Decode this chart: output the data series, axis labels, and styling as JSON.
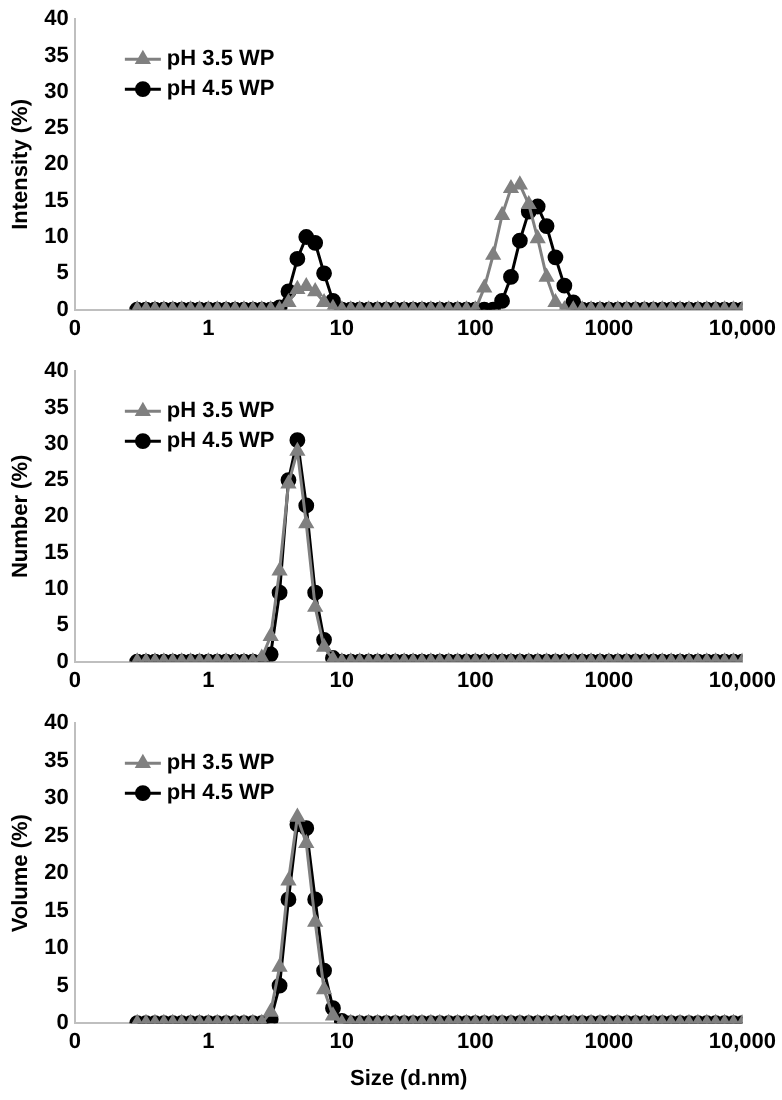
{
  "chart_data": [
    {
      "type": "line",
      "ylabel": "Intensity (%)",
      "legend": "top left",
      "grid": false,
      "x": [
        0.293,
        0.341,
        0.398,
        0.464,
        0.541,
        0.631,
        0.736,
        0.858,
        1,
        1.166,
        1.359,
        1.585,
        1.848,
        2.154,
        2.512,
        2.929,
        3.415,
        3.981,
        4.642,
        5.412,
        6.31,
        7.356,
        8.577,
        10,
        11.66,
        13.59,
        15.85,
        18.48,
        21.54,
        25.12,
        29.29,
        34.15,
        39.81,
        46.42,
        54.12,
        63.1,
        73.56,
        85.77,
        100,
        116.6,
        135.9,
        158.5,
        184.8,
        215.4,
        251.2,
        292.9,
        341.5,
        398.1,
        464.2,
        541.2,
        631,
        735.6,
        857.7,
        1000,
        1166,
        1359,
        1585,
        1848,
        2154,
        2512,
        2929,
        3415,
        3981,
        4642,
        5412,
        6310,
        7356,
        8577,
        10000
      ],
      "log": "x",
      "xlim": [
        0.1,
        10000
      ],
      "xticks": [
        {
          "value": 0.1,
          "label": "0"
        },
        1,
        10,
        100,
        {
          "value": 1000,
          "label": "1000"
        },
        {
          "value": 10000,
          "label": "10,000"
        }
      ],
      "ylim": [
        0,
        40
      ],
      "yticks": [
        0,
        5,
        10,
        15,
        20,
        25,
        30,
        35,
        40
      ],
      "series": [
        {
          "name": "pH 3.5 WP",
          "color": "#808080",
          "marker": "triangle",
          "values": [
            0,
            0,
            0,
            0,
            0,
            0,
            0,
            0,
            0,
            0,
            0,
            0,
            0,
            0,
            0,
            0,
            0,
            1,
            2.8,
            3.2,
            2.5,
            1,
            0.2,
            0,
            0,
            0,
            0,
            0,
            0,
            0,
            0,
            0,
            0,
            0,
            0,
            0,
            0,
            0,
            0,
            3,
            7.5,
            13,
            16.7,
            17.2,
            14.5,
            9.8,
            4.5,
            1,
            0,
            0,
            0,
            0,
            0,
            0,
            0,
            0,
            0,
            0,
            0,
            0,
            0,
            0,
            0,
            0,
            0,
            0,
            0,
            0,
            0
          ]
        },
        {
          "name": "pH 4.5 WP",
          "color": "#000000",
          "marker": "circle",
          "values": [
            0,
            0,
            0,
            0,
            0,
            0,
            0,
            0,
            0,
            0,
            0,
            0,
            0,
            0,
            0,
            0,
            0.3,
            2.5,
            7,
            10,
            9.2,
            5,
            1.2,
            0,
            0,
            0,
            0,
            0,
            0,
            0,
            0,
            0,
            0,
            0,
            0,
            0,
            0,
            0,
            0,
            0,
            0,
            1.2,
            4.5,
            9.5,
            13.5,
            14.2,
            11.5,
            7.2,
            3.3,
            1,
            0,
            0,
            0,
            0,
            0,
            0,
            0,
            0,
            0,
            0,
            0,
            0,
            0,
            0,
            0,
            0,
            0,
            0,
            0
          ]
        }
      ]
    },
    {
      "type": "line",
      "ylabel": "Number (%)",
      "legend": "top left",
      "grid": false,
      "x": [
        0.293,
        0.341,
        0.398,
        0.464,
        0.541,
        0.631,
        0.736,
        0.858,
        1,
        1.166,
        1.359,
        1.585,
        1.848,
        2.154,
        2.512,
        2.929,
        3.415,
        3.981,
        4.642,
        5.412,
        6.31,
        7.356,
        8.577,
        10,
        11.66,
        13.59,
        15.85,
        18.48,
        21.54,
        25.12,
        29.29,
        34.15,
        39.81,
        46.42,
        54.12,
        63.1,
        73.56,
        85.77,
        100,
        116.6,
        135.9,
        158.5,
        184.8,
        215.4,
        251.2,
        292.9,
        341.5,
        398.1,
        464.2,
        541.2,
        631,
        735.6,
        857.7,
        1000,
        1166,
        1359,
        1585,
        1848,
        2154,
        2512,
        2929,
        3415,
        3981,
        4642,
        5412,
        6310,
        7356,
        8577,
        10000
      ],
      "log": "x",
      "xlim": [
        0.1,
        10000
      ],
      "xticks": [
        {
          "value": 0.1,
          "label": "0"
        },
        1,
        10,
        100,
        {
          "value": 1000,
          "label": "1000"
        },
        {
          "value": 10000,
          "label": "10,000"
        }
      ],
      "ylim": [
        0,
        40
      ],
      "yticks": [
        0,
        5,
        10,
        15,
        20,
        25,
        30,
        35,
        40
      ],
      "series": [
        {
          "name": "pH 3.5 WP",
          "color": "#808080",
          "marker": "triangle",
          "values": [
            0,
            0,
            0,
            0,
            0,
            0,
            0,
            0,
            0,
            0,
            0,
            0,
            0,
            0,
            0.5,
            3.5,
            12.5,
            24.5,
            29,
            19,
            7.5,
            2,
            0.3,
            0,
            0,
            0,
            0,
            0,
            0,
            0,
            0,
            0,
            0,
            0,
            0,
            0,
            0,
            0,
            0,
            0,
            0,
            0,
            0,
            0,
            0,
            0,
            0,
            0,
            0,
            0,
            0,
            0,
            0,
            0,
            0,
            0,
            0,
            0,
            0,
            0,
            0,
            0,
            0,
            0,
            0,
            0,
            0,
            0,
            0
          ]
        },
        {
          "name": "pH 4.5 WP",
          "color": "#000000",
          "marker": "circle",
          "values": [
            0,
            0,
            0,
            0,
            0,
            0,
            0,
            0,
            0,
            0,
            0,
            0,
            0,
            0,
            0,
            1,
            9.5,
            25,
            30.5,
            21.5,
            9.5,
            3,
            0.5,
            0,
            0,
            0,
            0,
            0,
            0,
            0,
            0,
            0,
            0,
            0,
            0,
            0,
            0,
            0,
            0,
            0,
            0,
            0,
            0,
            0,
            0,
            0,
            0,
            0,
            0,
            0,
            0,
            0,
            0,
            0,
            0,
            0,
            0,
            0,
            0,
            0,
            0,
            0,
            0,
            0,
            0,
            0,
            0,
            0,
            0
          ]
        }
      ]
    },
    {
      "type": "line",
      "ylabel": "Volume (%)",
      "xlabel": "Size (d.nm)",
      "legend": "top left",
      "grid": false,
      "x": [
        0.293,
        0.341,
        0.398,
        0.464,
        0.541,
        0.631,
        0.736,
        0.858,
        1,
        1.166,
        1.359,
        1.585,
        1.848,
        2.154,
        2.512,
        2.929,
        3.415,
        3.981,
        4.642,
        5.412,
        6.31,
        7.356,
        8.577,
        10,
        11.66,
        13.59,
        15.85,
        18.48,
        21.54,
        25.12,
        29.29,
        34.15,
        39.81,
        46.42,
        54.12,
        63.1,
        73.56,
        85.77,
        100,
        116.6,
        135.9,
        158.5,
        184.8,
        215.4,
        251.2,
        292.9,
        341.5,
        398.1,
        464.2,
        541.2,
        631,
        735.6,
        857.7,
        1000,
        1166,
        1359,
        1585,
        1848,
        2154,
        2512,
        2929,
        3415,
        3981,
        4642,
        5412,
        6310,
        7356,
        8577,
        10000
      ],
      "log": "x",
      "xlim": [
        0.1,
        10000
      ],
      "xticks": [
        {
          "value": 0.1,
          "label": "0"
        },
        1,
        10,
        100,
        {
          "value": 1000,
          "label": "1000"
        },
        {
          "value": 10000,
          "label": "10,000"
        }
      ],
      "ylim": [
        0,
        40
      ],
      "yticks": [
        0,
        5,
        10,
        15,
        20,
        25,
        30,
        35,
        40
      ],
      "series": [
        {
          "name": "pH 3.5 WP",
          "color": "#808080",
          "marker": "triangle",
          "values": [
            0,
            0,
            0,
            0,
            0,
            0,
            0,
            0,
            0,
            0,
            0,
            0,
            0,
            0,
            0,
            1.5,
            7.5,
            19,
            27.5,
            24,
            13.5,
            4.5,
            1,
            0,
            0,
            0,
            0,
            0,
            0,
            0,
            0,
            0,
            0,
            0,
            0,
            0,
            0,
            0,
            0,
            0,
            0,
            0,
            0,
            0,
            0,
            0,
            0,
            0,
            0,
            0,
            0,
            0,
            0,
            0,
            0,
            0,
            0,
            0,
            0,
            0,
            0,
            0,
            0,
            0,
            0,
            0,
            0,
            0,
            0
          ]
        },
        {
          "name": "pH 4.5 WP",
          "color": "#000000",
          "marker": "circle",
          "values": [
            0,
            0,
            0,
            0,
            0,
            0,
            0,
            0,
            0,
            0,
            0,
            0,
            0,
            0,
            0,
            0.5,
            5,
            16.5,
            26.5,
            26,
            16.5,
            7,
            2,
            0.3,
            0,
            0,
            0,
            0,
            0,
            0,
            0,
            0,
            0,
            0,
            0,
            0,
            0,
            0,
            0,
            0,
            0,
            0,
            0,
            0,
            0,
            0,
            0,
            0,
            0,
            0,
            0,
            0,
            0,
            0,
            0,
            0,
            0,
            0,
            0,
            0,
            0,
            0,
            0,
            0,
            0,
            0,
            0,
            0,
            0
          ]
        }
      ]
    }
  ]
}
